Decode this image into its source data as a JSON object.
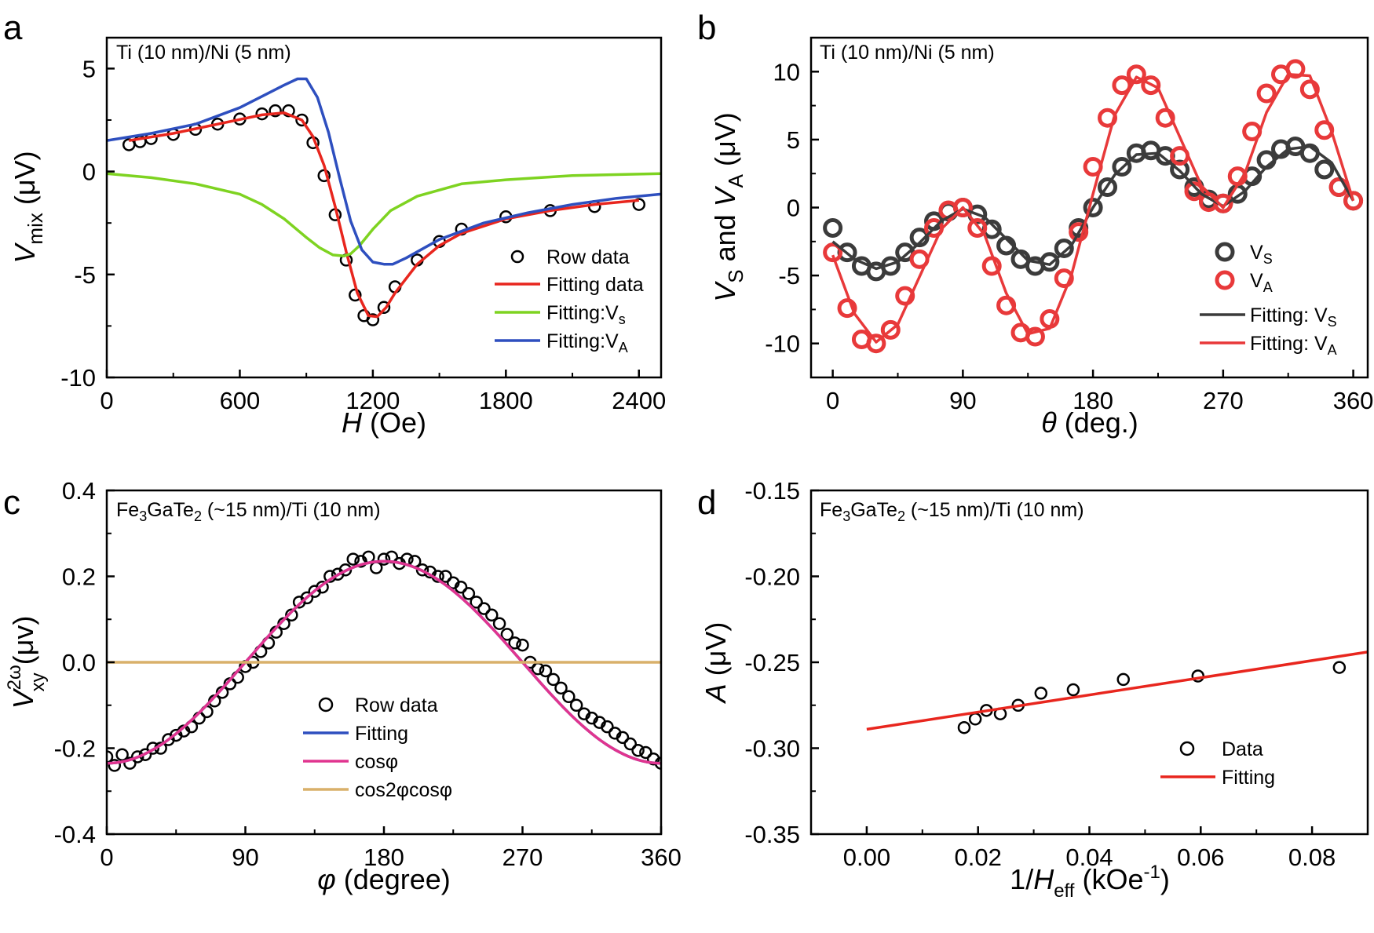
{
  "chart_data": [
    {
      "panel": "a",
      "type": "line",
      "annotation": "Ti (10 nm)/Ni (5 nm)",
      "xlabel": "H (Oe)",
      "ylabel": "V_mix (μV)",
      "xlim": [
        0,
        2500
      ],
      "ylim": [
        -10,
        6.5
      ],
      "xticks": [
        "0",
        "600",
        "1200",
        "1800",
        "2400"
      ],
      "yticks": [
        "-10",
        "-5",
        "0",
        "5"
      ],
      "legend": [
        "Row data",
        "Fitting data",
        "Fitting:V",
        "Fitting:V"
      ],
      "legend_subscripts": [
        "",
        "",
        "s",
        "A"
      ],
      "series": [
        {
          "name": "Row data",
          "kind": "scatter",
          "color": "#000000",
          "x": [
            100,
            150,
            200,
            300,
            400,
            500,
            600,
            700,
            760,
            820,
            880,
            930,
            980,
            1030,
            1080,
            1120,
            1160,
            1200,
            1250,
            1300,
            1400,
            1500,
            1600,
            1800,
            2000,
            2200,
            2400
          ],
          "y": [
            1.3,
            1.45,
            1.6,
            1.8,
            2.05,
            2.3,
            2.55,
            2.8,
            2.95,
            2.95,
            2.5,
            1.4,
            -0.2,
            -2.1,
            -4.3,
            -6.0,
            -7.0,
            -7.2,
            -6.6,
            -5.6,
            -4.3,
            -3.4,
            -2.8,
            -2.2,
            -1.9,
            -1.7,
            -1.6
          ]
        },
        {
          "name": "Fitting data",
          "kind": "line",
          "color": "#e8261e",
          "x": [
            100,
            300,
            500,
            700,
            800,
            880,
            930,
            980,
            1030,
            1080,
            1130,
            1180,
            1220,
            1260,
            1300,
            1400,
            1500,
            1600,
            1800,
            2000,
            2200,
            2400
          ],
          "y": [
            1.5,
            1.85,
            2.3,
            2.75,
            2.85,
            2.5,
            1.7,
            0.3,
            -1.7,
            -3.9,
            -5.9,
            -7.0,
            -7.05,
            -6.6,
            -5.9,
            -4.5,
            -3.6,
            -3.0,
            -2.3,
            -1.9,
            -1.6,
            -1.4
          ]
        },
        {
          "name": "Fitting:Vs",
          "kind": "line",
          "color": "#7ed321",
          "x": [
            0,
            200,
            400,
            600,
            700,
            800,
            900,
            960,
            1020,
            1070,
            1100,
            1140,
            1200,
            1280,
            1400,
            1600,
            1800,
            2100,
            2500
          ],
          "y": [
            -0.1,
            -0.3,
            -0.6,
            -1.1,
            -1.6,
            -2.3,
            -3.2,
            -3.7,
            -4.05,
            -4.1,
            -4.0,
            -3.6,
            -2.8,
            -1.9,
            -1.2,
            -0.6,
            -0.4,
            -0.2,
            -0.1
          ]
        },
        {
          "name": "Fitting:VA",
          "kind": "line",
          "color": "#2e4fbf",
          "x": [
            0,
            200,
            400,
            600,
            700,
            800,
            860,
            900,
            950,
            1000,
            1050,
            1100,
            1150,
            1200,
            1250,
            1290,
            1350,
            1500,
            1700,
            1900,
            2100,
            2300,
            2500
          ],
          "y": [
            1.5,
            1.85,
            2.3,
            3.1,
            3.65,
            4.2,
            4.5,
            4.5,
            3.6,
            1.9,
            -0.3,
            -2.4,
            -3.8,
            -4.4,
            -4.5,
            -4.5,
            -4.2,
            -3.3,
            -2.5,
            -2.0,
            -1.6,
            -1.3,
            -1.1
          ]
        }
      ]
    },
    {
      "panel": "b",
      "type": "line",
      "annotation": "Ti (10 nm)/Ni (5 nm)",
      "xlabel": "θ (deg.)",
      "ylabel": "V_S and V_A (μV)",
      "xlim": [
        -15,
        370
      ],
      "ylim": [
        -12.5,
        12.5
      ],
      "xticks": [
        "0",
        "90",
        "180",
        "270",
        "360"
      ],
      "yticks": [
        "-10",
        "-5",
        "0",
        "5",
        "10"
      ],
      "legend": [
        "V",
        "V",
        "Fitting: V",
        "Fitting: V"
      ],
      "legend_subscripts": [
        "S",
        "A",
        "S",
        "A"
      ],
      "series": [
        {
          "name": "VS",
          "kind": "scatter",
          "color": "#3b3b3b",
          "x": [
            0,
            10,
            20,
            30,
            40,
            50,
            60,
            70,
            80,
            90,
            100,
            110,
            120,
            130,
            140,
            150,
            160,
            170,
            180,
            190,
            200,
            210,
            220,
            230,
            240,
            250,
            260,
            270,
            280,
            290,
            300,
            310,
            320,
            330,
            340,
            350,
            360
          ],
          "y": [
            -1.5,
            -3.3,
            -4.3,
            -4.7,
            -4.3,
            -3.3,
            -2.2,
            -1.0,
            -0.3,
            0.0,
            -0.5,
            -1.6,
            -2.8,
            -3.8,
            -4.3,
            -4.0,
            -3.0,
            -1.5,
            0.0,
            1.5,
            3.0,
            4.0,
            4.2,
            3.8,
            2.8,
            1.5,
            0.6,
            0.3,
            1.0,
            2.3,
            3.5,
            4.3,
            4.5,
            4.0,
            2.8,
            1.5,
            0.5
          ]
        },
        {
          "name": "VA",
          "kind": "scatter",
          "color": "#e8393a",
          "x": [
            0,
            10,
            20,
            30,
            40,
            50,
            60,
            70,
            80,
            90,
            100,
            110,
            120,
            130,
            140,
            150,
            160,
            170,
            180,
            190,
            200,
            210,
            220,
            230,
            240,
            250,
            260,
            270,
            280,
            290,
            300,
            310,
            320,
            330,
            340,
            350,
            360
          ],
          "y": [
            -3.3,
            -7.4,
            -9.7,
            -10.0,
            -9.0,
            -6.5,
            -3.8,
            -1.5,
            -0.2,
            0.0,
            -1.5,
            -4.3,
            -7.2,
            -9.2,
            -9.5,
            -8.2,
            -5.2,
            -1.8,
            3.0,
            6.6,
            9.0,
            9.8,
            9.0,
            6.6,
            3.8,
            1.2,
            0.4,
            0.3,
            2.3,
            5.6,
            8.4,
            9.8,
            10.2,
            8.7,
            5.7,
            1.5,
            0.5
          ]
        },
        {
          "name": "Fitting: VS",
          "kind": "line",
          "color": "#3b3b3b",
          "x": [
            0,
            15,
            30,
            45,
            60,
            75,
            90,
            105,
            120,
            135,
            150,
            165,
            180,
            195,
            210,
            225,
            240,
            255,
            270,
            285,
            300,
            315,
            330,
            345,
            360
          ],
          "y": [
            -2.5,
            -3.8,
            -4.5,
            -4.0,
            -2.6,
            -1.0,
            -0.1,
            -0.7,
            -2.3,
            -3.9,
            -4.2,
            -2.8,
            0.0,
            2.4,
            3.9,
            4.0,
            2.7,
            1.0,
            0.1,
            1.2,
            3.0,
            4.3,
            4.5,
            3.3,
            0.5
          ]
        },
        {
          "name": "Fitting: VA",
          "kind": "line",
          "color": "#e8393a",
          "x": [
            0,
            15,
            30,
            45,
            60,
            75,
            90,
            105,
            120,
            135,
            150,
            165,
            180,
            195,
            210,
            225,
            240,
            255,
            270,
            285,
            300,
            315,
            330,
            345,
            360
          ],
          "y": [
            -3.5,
            -7.8,
            -9.9,
            -8.6,
            -5.1,
            -1.6,
            0.0,
            -2.0,
            -6.3,
            -9.3,
            -8.9,
            -5.0,
            1.0,
            6.8,
            9.6,
            8.8,
            5.2,
            1.6,
            0.0,
            2.5,
            7.0,
            9.8,
            9.7,
            5.6,
            0.5
          ]
        }
      ]
    },
    {
      "panel": "c",
      "type": "line",
      "annotation": "Fe3GaTe2 (~15 nm)/Ti (10 nm)",
      "annotation_parts": [
        "Fe",
        "3",
        "GaTe",
        "2",
        " (~15 nm)/Ti (10 nm)"
      ],
      "xlabel": "φ (degree)",
      "ylabel": "V_xy^2ω (μv)",
      "ylabel_parts": [
        "V",
        "2ω",
        "xy",
        " (μv)"
      ],
      "xlim": [
        0,
        360
      ],
      "ylim": [
        -0.4,
        0.4
      ],
      "xticks": [
        "0",
        "90",
        "180",
        "270",
        "360"
      ],
      "yticks": [
        "-0.4",
        "-0.2",
        "0.0",
        "0.2",
        "0.4"
      ],
      "legend": [
        "Row data",
        "Fitting",
        "cosφ",
        "cos2φcosφ"
      ],
      "series": [
        {
          "name": "Row data",
          "kind": "scatter",
          "color": "#000000",
          "x": [
            0,
            5,
            10,
            15,
            20,
            25,
            30,
            35,
            40,
            45,
            50,
            55,
            60,
            65,
            70,
            75,
            80,
            85,
            90,
            95,
            100,
            105,
            110,
            115,
            120,
            125,
            130,
            135,
            140,
            145,
            150,
            155,
            160,
            165,
            170,
            175,
            180,
            185,
            190,
            195,
            200,
            205,
            210,
            215,
            220,
            225,
            230,
            235,
            240,
            245,
            250,
            255,
            260,
            265,
            270,
            275,
            280,
            285,
            290,
            295,
            300,
            305,
            310,
            315,
            320,
            325,
            330,
            335,
            340,
            345,
            350,
            355,
            360
          ],
          "y": [
            -0.22,
            -0.24,
            -0.215,
            -0.235,
            -0.22,
            -0.215,
            -0.2,
            -0.2,
            -0.18,
            -0.17,
            -0.16,
            -0.15,
            -0.13,
            -0.115,
            -0.09,
            -0.07,
            -0.05,
            -0.035,
            -0.01,
            0.0,
            0.025,
            0.045,
            0.07,
            0.09,
            0.11,
            0.14,
            0.15,
            0.165,
            0.175,
            0.2,
            0.205,
            0.215,
            0.24,
            0.235,
            0.245,
            0.22,
            0.24,
            0.245,
            0.23,
            0.24,
            0.235,
            0.215,
            0.21,
            0.2,
            0.2,
            0.185,
            0.175,
            0.16,
            0.14,
            0.125,
            0.11,
            0.09,
            0.065,
            0.045,
            0.04,
            0.0,
            -0.015,
            -0.02,
            -0.04,
            -0.06,
            -0.08,
            -0.1,
            -0.12,
            -0.13,
            -0.14,
            -0.15,
            -0.165,
            -0.175,
            -0.19,
            -0.205,
            -0.21,
            -0.225,
            -0.235
          ]
        },
        {
          "name": "Fitting",
          "kind": "line",
          "color": "#2e4fbf",
          "func": "cos",
          "amplitude": -0.235,
          "y": []
        },
        {
          "name": "cosφ",
          "kind": "line",
          "color": "#e0348f",
          "func": "cos",
          "amplitude": -0.235,
          "y": []
        },
        {
          "name": "cos2φcosφ",
          "kind": "line",
          "color": "#d9b06a",
          "x": [
            0,
            360
          ],
          "y": [
            0.0,
            0.0
          ]
        }
      ]
    },
    {
      "panel": "d",
      "type": "scatter",
      "annotation": "Fe3GaTe2 (~15 nm)/Ti (10 nm)",
      "annotation_parts": [
        "Fe",
        "3",
        "GaTe",
        "2",
        " (~15 nm)/Ti (10 nm)"
      ],
      "xlabel": "1/H_eff (kOe^-1)",
      "xlabel_parts": [
        "1/",
        "H",
        "eff",
        " (kOe",
        "-1",
        ")"
      ],
      "ylabel": "A (μV)",
      "xlim": [
        -0.01,
        0.09
      ],
      "ylim": [
        -0.35,
        -0.15
      ],
      "xticks": [
        "0.00",
        "0.02",
        "0.04",
        "0.06",
        "0.08"
      ],
      "yticks": [
        "-0.35",
        "-0.30",
        "-0.25",
        "-0.20",
        "-0.15"
      ],
      "legend": [
        "Data",
        "Fitting"
      ],
      "series": [
        {
          "name": "Data",
          "kind": "scatter",
          "color": "#000000",
          "x": [
            0.0175,
            0.0195,
            0.0215,
            0.024,
            0.0272,
            0.0313,
            0.0371,
            0.0461,
            0.0595,
            0.0849
          ],
          "y": [
            -0.288,
            -0.283,
            -0.278,
            -0.28,
            -0.275,
            -0.268,
            -0.266,
            -0.26,
            -0.258,
            -0.253
          ]
        },
        {
          "name": "Fitting",
          "kind": "line",
          "color": "#e8261e",
          "x": [
            0.0,
            0.09
          ],
          "y": [
            -0.289,
            -0.244
          ]
        }
      ]
    }
  ]
}
